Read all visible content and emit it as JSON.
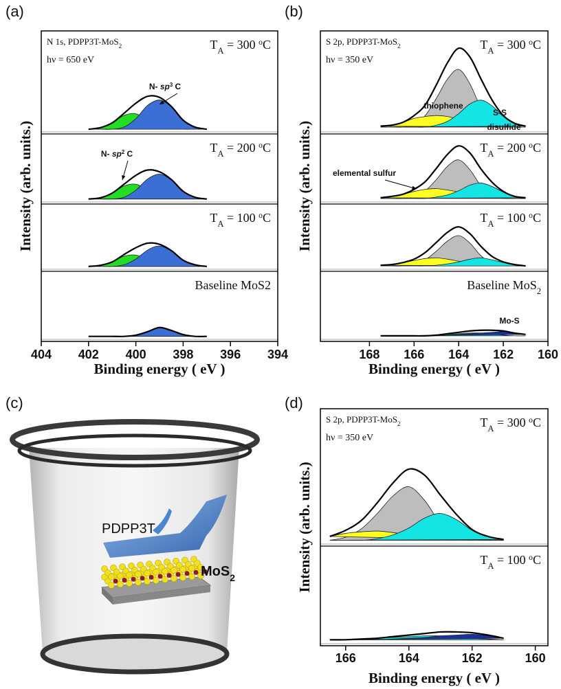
{
  "chart_data": [
    {
      "type": "area",
      "panel_label": "(a)",
      "ylabel": "Intensity (arb. units.)",
      "xlabel": "Binding energy  ( eV )",
      "xlim": [
        404,
        394
      ],
      "xticks": [
        404,
        402,
        400,
        398,
        396,
        394
      ],
      "x": [
        402,
        401.5,
        401,
        400.5,
        400,
        399.5,
        399,
        398.5,
        398,
        397.5,
        397
      ],
      "panels": [
        {
          "header": [
            "N 1s, PDPP3T-MoS",
            {
              "sub": "2"
            }
          ],
          "energy": "hν = 650 eV",
          "condition": [
            "T",
            {
              "sub": "A"
            },
            " = 300 ",
            {
              "sup": "o"
            },
            "C"
          ],
          "ylim": [
            -0.05,
            1.85
          ],
          "annotations": [
            [
              "N- ",
              {
                "i": "sp"
              },
              {
                "sup": "3"
              },
              " C"
            ]
          ],
          "series": [
            {
              "kind": "area",
              "color": "#22dd22",
              "values": [
                0,
                0.03,
                0.12,
                0.26,
                0.29,
                0.17,
                0.05,
                0.01,
                0,
                0,
                0
              ]
            },
            {
              "kind": "area",
              "color": "#3b6fd6",
              "values": [
                0,
                0,
                0,
                0.04,
                0.2,
                0.45,
                0.55,
                0.42,
                0.17,
                0.04,
                0
              ]
            },
            {
              "kind": "line",
              "color": "#000000",
              "values": [
                0,
                0.03,
                0.12,
                0.3,
                0.49,
                0.62,
                0.6,
                0.43,
                0.17,
                0.04,
                0
              ]
            }
          ]
        },
        {
          "condition": [
            "T",
            {
              "sub": "A"
            },
            " = 200 ",
            {
              "sup": "o"
            },
            "C"
          ],
          "ylim": [
            -0.05,
            1.1
          ],
          "annotations": [
            [
              "N- ",
              {
                "i": "sp"
              },
              {
                "sup": "2"
              },
              " C"
            ]
          ],
          "series": [
            {
              "kind": "area",
              "color": "#22dd22",
              "values": [
                0,
                0.02,
                0.1,
                0.22,
                0.25,
                0.15,
                0.04,
                0.01,
                0,
                0,
                0
              ]
            },
            {
              "kind": "area",
              "color": "#3b6fd6",
              "values": [
                0,
                0,
                0,
                0.03,
                0.15,
                0.34,
                0.42,
                0.32,
                0.13,
                0.03,
                0
              ]
            },
            {
              "kind": "line",
              "color": "#000000",
              "values": [
                0,
                0.02,
                0.1,
                0.25,
                0.4,
                0.49,
                0.46,
                0.33,
                0.13,
                0.03,
                0
              ]
            }
          ]
        },
        {
          "condition": [
            "T",
            {
              "sub": "A"
            },
            " = 100 ",
            {
              "sup": "o"
            },
            "C"
          ],
          "ylim": [
            -0.05,
            1.1
          ],
          "series": [
            {
              "kind": "area",
              "color": "#22dd22",
              "values": [
                0,
                0.02,
                0.08,
                0.18,
                0.2,
                0.12,
                0.03,
                0.01,
                0,
                0,
                0
              ]
            },
            {
              "kind": "area",
              "color": "#3b6fd6",
              "values": [
                0,
                0,
                0,
                0.03,
                0.13,
                0.29,
                0.36,
                0.27,
                0.11,
                0.03,
                0
              ]
            },
            {
              "kind": "line",
              "color": "#000000",
              "values": [
                0,
                0.02,
                0.08,
                0.21,
                0.33,
                0.41,
                0.39,
                0.28,
                0.11,
                0.03,
                0
              ]
            }
          ]
        },
        {
          "condition": "Baseline MoS2",
          "ylim": [
            -0.05,
            1.1
          ],
          "series": [
            {
              "kind": "area",
              "color": "#3b6fd6",
              "values": [
                0,
                0,
                0,
                0,
                0.02,
                0.08,
                0.15,
                0.1,
                0.03,
                0,
                0
              ]
            },
            {
              "kind": "line",
              "color": "#000000",
              "values": [
                0,
                0,
                0,
                0,
                0.02,
                0.08,
                0.15,
                0.1,
                0.03,
                0,
                0
              ]
            }
          ]
        }
      ]
    },
    {
      "type": "area",
      "panel_label": "(b)",
      "ylabel": "Intensity (arb. units.)",
      "xlabel": "Binding energy  ( eV )",
      "xlim": [
        170.2,
        160
      ],
      "xticks": [
        168,
        166,
        164,
        162,
        160
      ],
      "x": [
        167.5,
        167,
        166.5,
        166,
        165.5,
        165,
        164.5,
        164,
        163.5,
        163,
        162.5,
        162,
        161.5,
        161
      ],
      "panels": [
        {
          "header": [
            "S 2p, PDPP3T-MoS",
            {
              "sub": "2"
            }
          ],
          "energy": "hν = 350 eV",
          "condition": [
            "T",
            {
              "sub": "A"
            },
            " = 300 ",
            {
              "sup": "o"
            },
            "C"
          ],
          "ylim": [
            -0.05,
            1.0
          ],
          "annotations": [
            "thiophene",
            "S-S",
            "disulfide"
          ],
          "series": [
            {
              "kind": "area",
              "color": "#bdbdbd",
              "values": [
                0,
                0,
                0,
                0.03,
                0.12,
                0.3,
                0.5,
                0.6,
                0.45,
                0.2,
                0.05,
                0.01,
                0,
                0
              ]
            },
            {
              "kind": "area",
              "color": "#ffff22",
              "values": [
                0.01,
                0.02,
                0.05,
                0.09,
                0.11,
                0.12,
                0.11,
                0.08,
                0.04,
                0.02,
                0.01,
                0,
                0,
                0
              ]
            },
            {
              "kind": "area",
              "color": "#14e4e4",
              "values": [
                0,
                0,
                0,
                0,
                0,
                0.02,
                0.06,
                0.14,
                0.24,
                0.28,
                0.22,
                0.11,
                0.04,
                0.01
              ]
            },
            {
              "kind": "line",
              "color": "#000000",
              "values": [
                0.01,
                0.02,
                0.05,
                0.12,
                0.23,
                0.44,
                0.67,
                0.82,
                0.73,
                0.5,
                0.28,
                0.12,
                0.04,
                0.01
              ]
            }
          ]
        },
        {
          "condition": [
            "T",
            {
              "sub": "A"
            },
            " = 200 ",
            {
              "sup": "o"
            },
            "C"
          ],
          "ylim": [
            -0.05,
            0.92
          ],
          "annotations": [
            "elemental sulfur"
          ],
          "series": [
            {
              "kind": "area",
              "color": "#bdbdbd",
              "values": [
                0,
                0,
                0,
                0.03,
                0.11,
                0.27,
                0.46,
                0.55,
                0.41,
                0.18,
                0.05,
                0.01,
                0,
                0
              ]
            },
            {
              "kind": "area",
              "color": "#ffff22",
              "values": [
                0.01,
                0.03,
                0.06,
                0.1,
                0.13,
                0.14,
                0.12,
                0.09,
                0.05,
                0.02,
                0.01,
                0,
                0,
                0
              ]
            },
            {
              "kind": "area",
              "color": "#14e4e4",
              "values": [
                0,
                0,
                0,
                0,
                0,
                0.02,
                0.05,
                0.11,
                0.19,
                0.22,
                0.17,
                0.09,
                0.03,
                0.01
              ]
            },
            {
              "kind": "line",
              "color": "#000000",
              "values": [
                0.01,
                0.03,
                0.06,
                0.13,
                0.24,
                0.43,
                0.63,
                0.75,
                0.65,
                0.42,
                0.23,
                0.1,
                0.03,
                0.01
              ]
            }
          ]
        },
        {
          "condition": [
            "T",
            {
              "sub": "A"
            },
            " = 100 ",
            {
              "sup": "o"
            },
            "C"
          ],
          "ylim": [
            -0.05,
            0.92
          ],
          "series": [
            {
              "kind": "area",
              "color": "#bdbdbd",
              "values": [
                0,
                0,
                0,
                0.02,
                0.09,
                0.22,
                0.37,
                0.45,
                0.34,
                0.15,
                0.04,
                0.01,
                0,
                0
              ]
            },
            {
              "kind": "area",
              "color": "#ffff22",
              "values": [
                0.01,
                0.02,
                0.05,
                0.08,
                0.11,
                0.12,
                0.1,
                0.07,
                0.04,
                0.02,
                0.01,
                0,
                0,
                0
              ]
            },
            {
              "kind": "area",
              "color": "#14e4e4",
              "values": [
                0,
                0,
                0,
                0,
                0,
                0.01,
                0.03,
                0.06,
                0.1,
                0.12,
                0.09,
                0.05,
                0.02,
                0
              ]
            },
            {
              "kind": "line",
              "color": "#000000",
              "values": [
                0.01,
                0.02,
                0.05,
                0.1,
                0.2,
                0.35,
                0.5,
                0.58,
                0.48,
                0.29,
                0.14,
                0.06,
                0.02,
                0
              ]
            }
          ]
        },
        {
          "condition": [
            "Baseline MoS",
            {
              "sub": "2"
            }
          ],
          "ylim": [
            -0.05,
            0.92
          ],
          "annotations": [
            "Mo-S"
          ],
          "series": [
            {
              "kind": "area",
              "color": "#14e4e4",
              "values": [
                0,
                0,
                0,
                0,
                0,
                0.01,
                0.02,
                0.03,
                0.04,
                0.04,
                0.03,
                0.01,
                0,
                0
              ]
            },
            {
              "kind": "area",
              "color": "#1a2fa8",
              "values": [
                0,
                0,
                0,
                0,
                0,
                0,
                0.01,
                0.02,
                0.03,
                0.04,
                0.05,
                0.06,
                0.04,
                0.02
              ]
            },
            {
              "kind": "line",
              "color": "#000000",
              "values": [
                0,
                0,
                0,
                0,
                0,
                0.01,
                0.03,
                0.05,
                0.07,
                0.08,
                0.08,
                0.07,
                0.04,
                0.02
              ]
            }
          ]
        }
      ]
    },
    {
      "type": "area",
      "panel_label": "(d)",
      "ylabel": "Intensity (arb. units.)",
      "xlabel": "Binding energy  ( eV )",
      "xlim": [
        166.8,
        159.6
      ],
      "xticks": [
        166,
        164,
        162,
        160
      ],
      "x": [
        166.5,
        166,
        165.5,
        165,
        164.5,
        164,
        163.5,
        163,
        162.5,
        162,
        161.5,
        161
      ],
      "panels": [
        {
          "header": [
            "S 2p, PDPP3T-MoS",
            {
              "sub": "2"
            }
          ],
          "energy": "hν = 350 eV",
          "condition": [
            "T",
            {
              "sub": "A"
            },
            " = 300 ",
            {
              "sup": "o"
            },
            "C"
          ],
          "ylim": [
            -0.05,
            1.72
          ],
          "series": [
            {
              "kind": "area",
              "color": "#bdbdbd",
              "values": [
                0,
                0.04,
                0.15,
                0.35,
                0.58,
                0.7,
                0.52,
                0.22,
                0.06,
                0.01,
                0,
                0
              ]
            },
            {
              "kind": "area",
              "color": "#ffff22",
              "values": [
                0.05,
                0.09,
                0.11,
                0.12,
                0.1,
                0.07,
                0.04,
                0.02,
                0.01,
                0,
                0,
                0
              ]
            },
            {
              "kind": "area",
              "color": "#14e4e4",
              "values": [
                0,
                0,
                0,
                0.02,
                0.07,
                0.16,
                0.29,
                0.35,
                0.27,
                0.13,
                0.05,
                0.01
              ]
            },
            {
              "kind": "line",
              "color": "#000000",
              "values": [
                0.05,
                0.13,
                0.26,
                0.49,
                0.75,
                0.93,
                0.85,
                0.59,
                0.34,
                0.14,
                0.05,
                0.01
              ]
            }
          ]
        },
        {
          "condition": [
            "T",
            {
              "sub": "A"
            },
            " = 100 ",
            {
              "sup": "o"
            },
            "C"
          ],
          "ylim": [
            -0.05,
            1.2
          ],
          "series": [
            {
              "kind": "area",
              "color": "#14e4e4",
              "values": [
                0,
                0,
                0.01,
                0.02,
                0.03,
                0.04,
                0.05,
                0.05,
                0.04,
                0.02,
                0.01,
                0
              ]
            },
            {
              "kind": "area",
              "color": "#1a2fa8",
              "values": [
                0,
                0,
                0,
                0,
                0.01,
                0.02,
                0.03,
                0.05,
                0.06,
                0.07,
                0.05,
                0.02
              ]
            },
            {
              "kind": "line",
              "color": "#000000",
              "values": [
                0,
                0,
                0.01,
                0.02,
                0.04,
                0.06,
                0.08,
                0.1,
                0.1,
                0.09,
                0.06,
                0.02
              ]
            }
          ]
        }
      ]
    }
  ],
  "illustration": {
    "panel_label": "(c)",
    "labels": [
      "PDPP3T",
      [
        "MoS",
        {
          "sub": "2"
        }
      ]
    ]
  }
}
